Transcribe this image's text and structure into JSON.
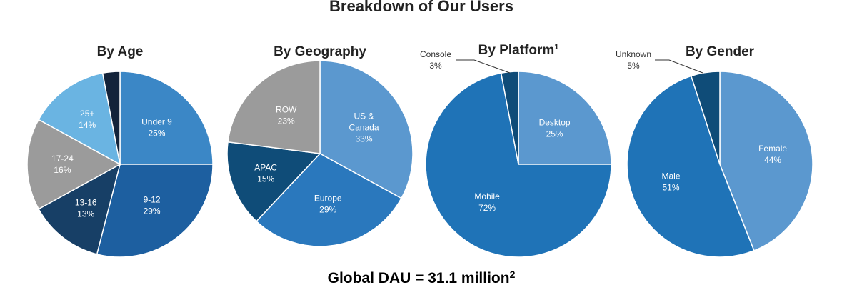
{
  "title": "Breakdown of Our Users",
  "footer": {
    "text": "Global DAU = 31.1 million",
    "sup": "2"
  },
  "chart_data": [
    {
      "type": "pie",
      "title": "By Age",
      "slices": [
        {
          "label": "Under 9",
          "value": 25,
          "display": "25%",
          "color": "#3b87c6"
        },
        {
          "label": "9-12",
          "value": 29,
          "display": "29%",
          "color": "#1d5fa0"
        },
        {
          "label": "13-16",
          "value": 13,
          "display": "13%",
          "color": "#173f66"
        },
        {
          "label": "17-24",
          "value": 16,
          "display": "16%",
          "color": "#9b9b9b"
        },
        {
          "label": "25+",
          "value": 14,
          "display": "14%",
          "color": "#6ab4e2"
        },
        {
          "label": "",
          "value": 3,
          "display": "",
          "color": "#13233a"
        }
      ]
    },
    {
      "type": "pie",
      "title": "By Geography",
      "slices": [
        {
          "label": "US & Canada",
          "lines": [
            "US &",
            "Canada"
          ],
          "value": 33,
          "display": "33%",
          "color": "#5b98cf"
        },
        {
          "label": "Europe",
          "value": 29,
          "display": "29%",
          "color": "#2a78bd"
        },
        {
          "label": "APAC",
          "value": 15,
          "display": "15%",
          "color": "#0f4c78"
        },
        {
          "label": "ROW",
          "value": 23,
          "display": "23%",
          "color": "#9b9b9b"
        }
      ]
    },
    {
      "type": "pie",
      "title": "By Platform",
      "title_sup": "1",
      "slices": [
        {
          "label": "Desktop",
          "value": 25,
          "display": "25%",
          "color": "#5b98cf"
        },
        {
          "label": "Mobile",
          "value": 72,
          "display": "72%",
          "color": "#1f73b7"
        },
        {
          "label": "Console",
          "value": 3,
          "display": "3%",
          "color": "#0f4c78",
          "callout": true
        }
      ]
    },
    {
      "type": "pie",
      "title": "By Gender",
      "slices": [
        {
          "label": "Female",
          "value": 44,
          "display": "44%",
          "color": "#5b98cf"
        },
        {
          "label": "Male",
          "value": 51,
          "display": "51%",
          "color": "#1f73b7"
        },
        {
          "label": "Unknown",
          "value": 5,
          "display": "5%",
          "color": "#0f4c78",
          "callout": true
        }
      ]
    }
  ]
}
